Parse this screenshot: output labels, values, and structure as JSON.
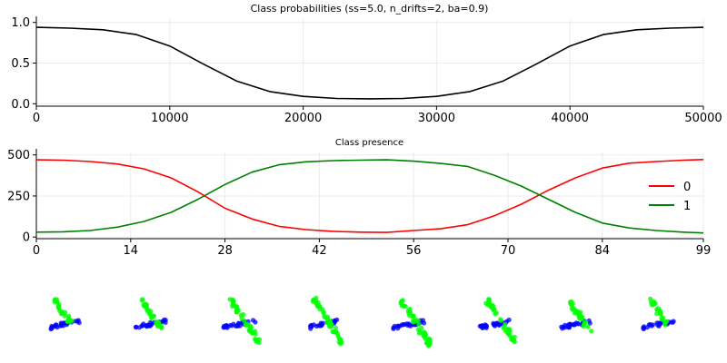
{
  "chart_data": [
    {
      "type": "line",
      "title": "Class probabilities (ss=5.0, n_drifts=2, ba=0.9)",
      "xlim": [
        0,
        50000
      ],
      "ylim": [
        -0.03,
        1.03
      ],
      "xticks": [
        0,
        10000,
        20000,
        30000,
        40000,
        50000
      ],
      "yticks": [
        0.0,
        0.5,
        1.0
      ],
      "xtick_labels": [
        "0",
        "10000",
        "20000",
        "30000",
        "40000",
        "50000"
      ],
      "ytick_labels": [
        "0.0",
        "0.5",
        "1.0"
      ],
      "grid": true,
      "series": [
        {
          "color": "#000000",
          "x": [
            0,
            2500,
            5000,
            7500,
            10000,
            12500,
            15000,
            17500,
            20000,
            22500,
            25000,
            27500,
            30000,
            32500,
            35000,
            37500,
            40000,
            42500,
            45000,
            47500,
            50000
          ],
          "values": [
            0.94,
            0.93,
            0.91,
            0.85,
            0.71,
            0.49,
            0.28,
            0.15,
            0.09,
            0.065,
            0.06,
            0.065,
            0.09,
            0.15,
            0.28,
            0.49,
            0.71,
            0.85,
            0.91,
            0.93,
            0.94
          ]
        }
      ]
    },
    {
      "type": "line",
      "title": "Class presence",
      "xlim": [
        0,
        99
      ],
      "ylim": [
        -10,
        515
      ],
      "xticks": [
        0,
        14,
        28,
        42,
        56,
        70,
        84,
        99
      ],
      "yticks": [
        0,
        250,
        500
      ],
      "xtick_labels": [
        "0",
        "14",
        "28",
        "42",
        "56",
        "70",
        "84",
        "99"
      ],
      "ytick_labels": [
        "0",
        "250",
        "500"
      ],
      "grid": true,
      "legend": "center-right",
      "series": [
        {
          "name": "0",
          "color": "#ff0000",
          "x": [
            0,
            4,
            8,
            12,
            16,
            20,
            24,
            28,
            32,
            36,
            40,
            44,
            48,
            52,
            56,
            60,
            64,
            68,
            72,
            76,
            80,
            84,
            88,
            92,
            96,
            99
          ],
          "values": [
            470,
            468,
            460,
            445,
            415,
            360,
            275,
            175,
            110,
            65,
            45,
            35,
            30,
            28,
            40,
            50,
            75,
            130,
            200,
            285,
            360,
            420,
            450,
            460,
            468,
            472
          ]
        },
        {
          "name": "1",
          "color": "#008000",
          "x": [
            0,
            4,
            8,
            12,
            16,
            20,
            24,
            28,
            32,
            36,
            40,
            44,
            48,
            52,
            56,
            60,
            64,
            68,
            72,
            76,
            80,
            84,
            88,
            92,
            96,
            99
          ],
          "values": [
            30,
            32,
            40,
            60,
            95,
            150,
            230,
            320,
            395,
            440,
            458,
            465,
            468,
            470,
            462,
            448,
            430,
            375,
            310,
            230,
            150,
            85,
            55,
            40,
            30,
            25
          ]
        }
      ]
    }
  ],
  "palette": {
    "class0_scatter": "#0000ff",
    "class1_scatter": "#00ff00"
  }
}
